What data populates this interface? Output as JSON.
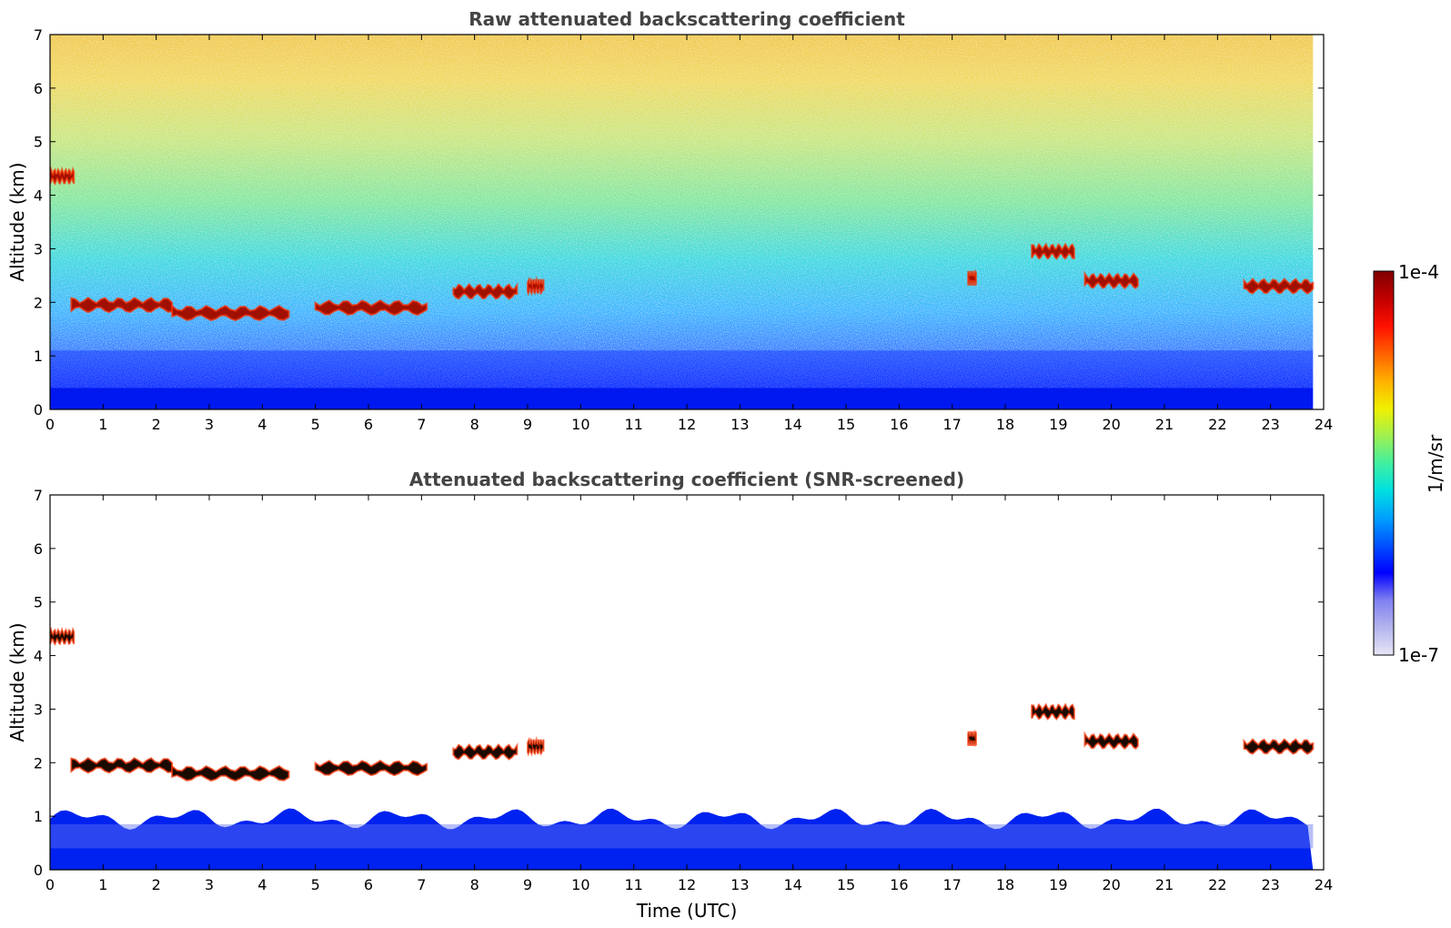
{
  "chart_data": [
    {
      "type": "heatmap",
      "title": "Raw attenuated backscattering coefficient",
      "xlabel": "",
      "ylabel": "Altitude (km)",
      "xlim": [
        0,
        24
      ],
      "ylim": [
        0,
        7
      ],
      "xticks": [
        "0",
        "1",
        "2",
        "3",
        "4",
        "5",
        "6",
        "7",
        "8",
        "9",
        "10",
        "11",
        "12",
        "13",
        "14",
        "15",
        "16",
        "17",
        "18",
        "19",
        "20",
        "21",
        "22",
        "23",
        "24"
      ],
      "yticks": [
        "0",
        "1",
        "2",
        "3",
        "4",
        "5",
        "6",
        "7"
      ],
      "grid": false,
      "features": {
        "boundary_layer_top_km": 0.4,
        "cloud_layers": [
          {
            "t_start": 0.0,
            "t_end": 0.45,
            "alt_km": 4.35
          },
          {
            "t_start": 0.4,
            "t_end": 2.3,
            "alt_km": 1.95
          },
          {
            "t_start": 2.3,
            "t_end": 4.5,
            "alt_km": 1.8
          },
          {
            "t_start": 5.0,
            "t_end": 7.1,
            "alt_km": 1.9
          },
          {
            "t_start": 7.6,
            "t_end": 8.8,
            "alt_km": 2.2
          },
          {
            "t_start": 9.0,
            "t_end": 9.3,
            "alt_km": 2.3
          },
          {
            "t_start": 17.3,
            "t_end": 17.45,
            "alt_km": 2.45
          },
          {
            "t_start": 18.5,
            "t_end": 19.3,
            "alt_km": 2.95
          },
          {
            "t_start": 19.5,
            "t_end": 20.5,
            "alt_km": 2.4
          },
          {
            "t_start": 22.5,
            "t_end": 23.8,
            "alt_km": 2.3
          }
        ]
      }
    },
    {
      "type": "heatmap",
      "title": "Attenuated backscattering coefficient (SNR-screened)",
      "xlabel": "Time (UTC)",
      "ylabel": "Altitude (km)",
      "xlim": [
        0,
        24
      ],
      "ylim": [
        0,
        7
      ],
      "xticks": [
        "0",
        "1",
        "2",
        "3",
        "4",
        "5",
        "6",
        "7",
        "8",
        "9",
        "10",
        "11",
        "12",
        "13",
        "14",
        "15",
        "16",
        "17",
        "18",
        "19",
        "20",
        "21",
        "22",
        "23",
        "24"
      ],
      "yticks": [
        "0",
        "1",
        "2",
        "3",
        "4",
        "5",
        "6",
        "7"
      ],
      "grid": false,
      "features": {
        "screened": true,
        "boundary_layer_top_km": 0.95
      }
    }
  ],
  "colorbar": {
    "label": "1/m/sr",
    "max_label": "1e-4",
    "min_label": "1e-7",
    "scale": "log",
    "range": [
      1e-07,
      0.0001
    ],
    "colormap": [
      "#e6e6f5",
      "#b4b4ee",
      "#8080f0",
      "#0000ff",
      "#0050ff",
      "#00a0ff",
      "#00e0e0",
      "#40f0a0",
      "#a0f050",
      "#f0f000",
      "#ffb000",
      "#ff6000",
      "#ff1000",
      "#c00000",
      "#800000"
    ]
  }
}
